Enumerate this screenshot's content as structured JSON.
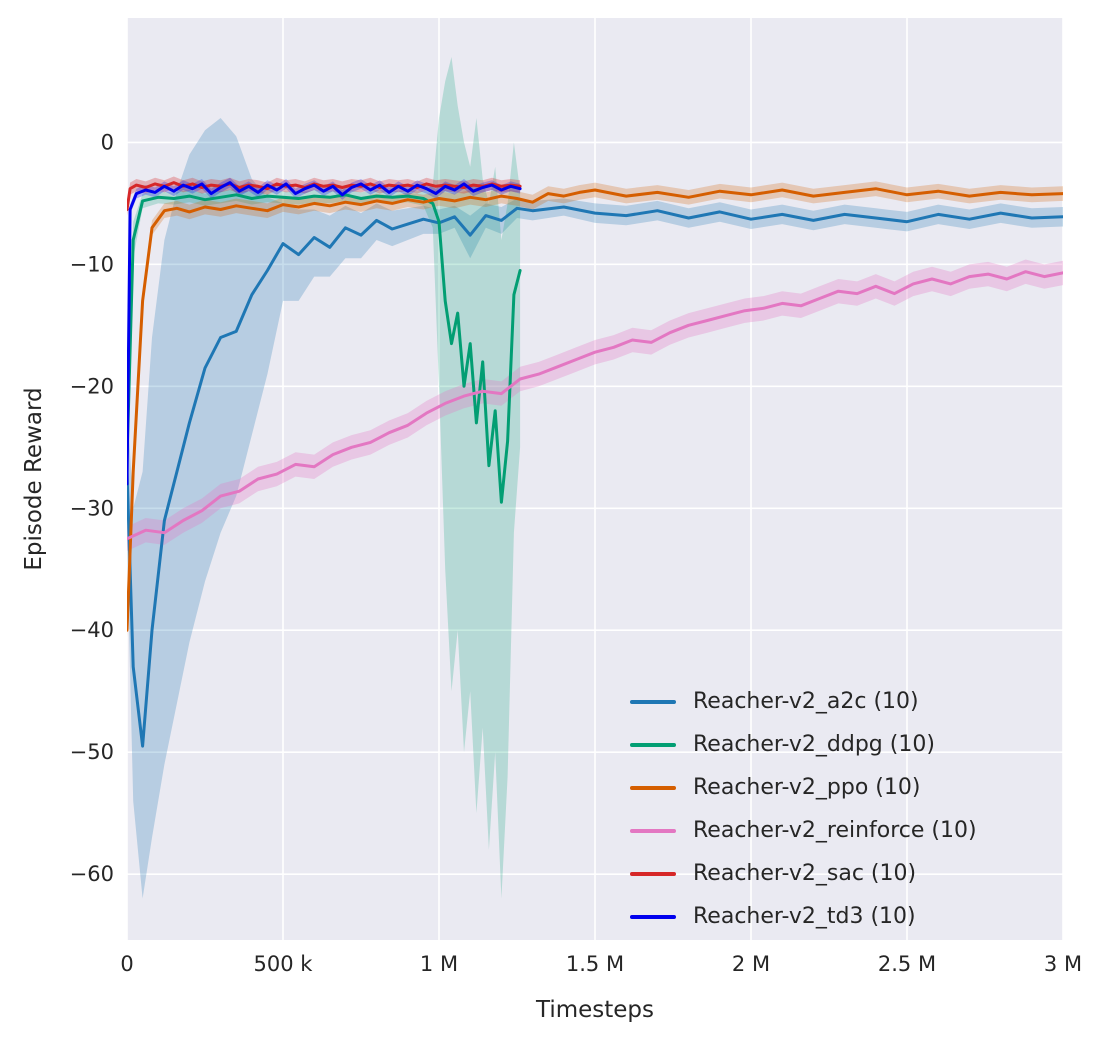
{
  "chart_data": {
    "type": "line",
    "title": "",
    "xlabel": "Timesteps",
    "ylabel": "Episode Reward",
    "x_unit": "millions of timesteps",
    "x_range": [
      0,
      3.0
    ],
    "y_range": [
      -65.4,
      10.2
    ],
    "grid": true,
    "legend_position": "lower right",
    "background": "#eaeaf2",
    "grid_color": "#ffffff",
    "text_color": "#262626",
    "xticks": [
      {
        "v": 0,
        "label": "0"
      },
      {
        "v": 0.5,
        "label": "500 k"
      },
      {
        "v": 1.0,
        "label": "1 M"
      },
      {
        "v": 1.5,
        "label": "1.5 M"
      },
      {
        "v": 2.0,
        "label": "2 M"
      },
      {
        "v": 2.5,
        "label": "2.5 M"
      },
      {
        "v": 3.0,
        "label": "3 M"
      }
    ],
    "yticks": [
      {
        "v": 0,
        "label": "0"
      },
      {
        "v": -10,
        "label": "−10"
      },
      {
        "v": -20,
        "label": "−20"
      },
      {
        "v": -30,
        "label": "−30"
      },
      {
        "v": -40,
        "label": "−40"
      },
      {
        "v": -50,
        "label": "−50"
      },
      {
        "v": -60,
        "label": "−60"
      }
    ],
    "series": [
      {
        "name": "a2c",
        "label": "Reacher-v2_a2c (10)",
        "color": "#1f77b4",
        "band_opacity": 0.25,
        "x": [
          0,
          0.02,
          0.05,
          0.08,
          0.12,
          0.16,
          0.2,
          0.25,
          0.3,
          0.35,
          0.4,
          0.45,
          0.5,
          0.55,
          0.6,
          0.65,
          0.7,
          0.75,
          0.8,
          0.85,
          0.9,
          0.95,
          1.0,
          1.05,
          1.1,
          1.15,
          1.2,
          1.25,
          1.3,
          1.4,
          1.5,
          1.6,
          1.7,
          1.8,
          1.9,
          2.0,
          2.1,
          2.2,
          2.3,
          2.4,
          2.5,
          2.6,
          2.7,
          2.8,
          2.9,
          3.0
        ],
        "y": [
          -27,
          -43,
          -49.5,
          -40,
          -31,
          -27,
          -23,
          -18.5,
          -16,
          -15.5,
          -12.5,
          -10.5,
          -8.3,
          -9.2,
          -7.8,
          -8.6,
          -7.0,
          -7.6,
          -6.4,
          -7.1,
          -6.7,
          -6.3,
          -6.6,
          -6.1,
          -7.6,
          -6.0,
          -6.4,
          -5.4,
          -5.6,
          -5.3,
          -5.8,
          -6.0,
          -5.6,
          -6.2,
          -5.7,
          -6.3,
          -5.9,
          -6.4,
          -5.9,
          -6.2,
          -6.5,
          -5.9,
          -6.3,
          -5.8,
          -6.2,
          -6.1
        ],
        "band": {
          "lo": [
            -33,
            -54,
            -62,
            -57,
            -51,
            -46,
            -41,
            -36,
            -32,
            -29,
            -24,
            -19,
            -13,
            -13,
            -11,
            -11,
            -9.5,
            -9.5,
            -8,
            -8.5,
            -8,
            -7.5,
            -7.5,
            -7,
            -9.5,
            -7,
            -7.5,
            -6.2,
            -6.4,
            -6,
            -6.6,
            -6.8,
            -6.4,
            -7,
            -6.5,
            -7.1,
            -6.7,
            -7.2,
            -6.7,
            -7,
            -7.3,
            -6.7,
            -7.1,
            -6.6,
            -7,
            -6.9
          ],
          "hi": [
            -21,
            -30,
            -27,
            -16,
            -8,
            -4,
            -1,
            1,
            2,
            0.5,
            -3,
            -4.5,
            -5,
            -5.5,
            -5.5,
            -6,
            -5.2,
            -5.8,
            -5,
            -5.6,
            -5.4,
            -5.2,
            -5.5,
            -5.2,
            -6,
            -5,
            -5.3,
            -4.6,
            -4.8,
            -4.6,
            -5,
            -5.2,
            -4.8,
            -5.4,
            -4.9,
            -5.5,
            -5.1,
            -5.6,
            -5.1,
            -5.4,
            -5.7,
            -5.1,
            -5.5,
            -5,
            -5.4,
            -5.3
          ]
        }
      },
      {
        "name": "ddpg",
        "label": "Reacher-v2_ddpg (10)",
        "color": "#029e73",
        "band_opacity": 0.22,
        "x": [
          0,
          0.02,
          0.05,
          0.1,
          0.15,
          0.2,
          0.25,
          0.3,
          0.35,
          0.4,
          0.45,
          0.5,
          0.55,
          0.6,
          0.65,
          0.7,
          0.75,
          0.8,
          0.85,
          0.9,
          0.95,
          0.98,
          1.0,
          1.02,
          1.04,
          1.06,
          1.08,
          1.1,
          1.12,
          1.14,
          1.16,
          1.18,
          1.2,
          1.22,
          1.24,
          1.26
        ],
        "y": [
          -26,
          -8,
          -4.8,
          -4.5,
          -4.6,
          -4.4,
          -4.7,
          -4.5,
          -4.3,
          -4.6,
          -4.4,
          -4.5,
          -4.6,
          -4.4,
          -4.5,
          -4.3,
          -4.6,
          -4.4,
          -4.5,
          -4.4,
          -4.6,
          -5.0,
          -6.5,
          -13,
          -16.5,
          -14,
          -20,
          -16.5,
          -23,
          -18,
          -26.5,
          -22,
          -29.5,
          -24.5,
          -12.5,
          -10.5
        ],
        "band": {
          "lo": [
            -28,
            -9.5,
            -5.4,
            -5.0,
            -5.1,
            -4.9,
            -5.2,
            -5.0,
            -4.8,
            -5.1,
            -4.9,
            -5.0,
            -5.1,
            -4.9,
            -5.0,
            -4.8,
            -5.1,
            -4.9,
            -5.0,
            -4.9,
            -5.2,
            -7,
            -20,
            -35,
            -45,
            -40,
            -50,
            -45,
            -55,
            -48,
            -58,
            -50,
            -62,
            -52,
            -32,
            -25
          ],
          "hi": [
            -24,
            -6.5,
            -4.2,
            -4.0,
            -4.1,
            -3.9,
            -4.2,
            -4.0,
            -3.8,
            -4.1,
            -3.9,
            -4.0,
            -4.1,
            -3.9,
            -4.0,
            -3.8,
            -4.1,
            -3.9,
            -4.0,
            -3.9,
            -4.0,
            -3.5,
            2,
            5,
            7,
            3,
            0,
            -2,
            2,
            -3,
            -5,
            -2,
            -8,
            -5,
            0,
            -4
          ]
        }
      },
      {
        "name": "ppo",
        "label": "Reacher-v2_ppo (10)",
        "color": "#d55e00",
        "band_opacity": 0.25,
        "band_halfwidth": 0.6,
        "x": [
          0,
          0.02,
          0.05,
          0.08,
          0.12,
          0.16,
          0.2,
          0.25,
          0.3,
          0.35,
          0.4,
          0.45,
          0.5,
          0.55,
          0.6,
          0.65,
          0.7,
          0.75,
          0.8,
          0.85,
          0.9,
          0.95,
          1.0,
          1.05,
          1.1,
          1.15,
          1.2,
          1.25,
          1.3,
          1.35,
          1.4,
          1.45,
          1.5,
          1.6,
          1.7,
          1.8,
          1.9,
          2.0,
          2.1,
          2.2,
          2.3,
          2.4,
          2.5,
          2.6,
          2.7,
          2.8,
          2.9,
          3.0
        ],
        "y": [
          -40,
          -27,
          -13,
          -7.0,
          -5.6,
          -5.4,
          -5.7,
          -5.3,
          -5.5,
          -5.2,
          -5.4,
          -5.6,
          -5.1,
          -5.3,
          -5.0,
          -5.2,
          -4.9,
          -5.1,
          -4.8,
          -5.0,
          -4.7,
          -4.9,
          -4.6,
          -4.8,
          -4.5,
          -4.7,
          -4.4,
          -4.6,
          -4.9,
          -4.2,
          -4.4,
          -4.1,
          -3.9,
          -4.4,
          -4.1,
          -4.5,
          -4.0,
          -4.3,
          -3.9,
          -4.4,
          -4.1,
          -3.8,
          -4.3,
          -4.0,
          -4.4,
          -4.1,
          -4.3,
          -4.2
        ]
      },
      {
        "name": "reinforce",
        "label": "Reacher-v2_reinforce (10)",
        "color": "#e377c2",
        "band_opacity": 0.3,
        "band_halfwidth": 1.0,
        "x": [
          0,
          0.06,
          0.12,
          0.18,
          0.24,
          0.3,
          0.36,
          0.42,
          0.48,
          0.54,
          0.6,
          0.66,
          0.72,
          0.78,
          0.84,
          0.9,
          0.96,
          1.02,
          1.08,
          1.14,
          1.2,
          1.26,
          1.32,
          1.38,
          1.44,
          1.5,
          1.56,
          1.62,
          1.68,
          1.74,
          1.8,
          1.86,
          1.92,
          1.98,
          2.04,
          2.1,
          2.16,
          2.22,
          2.28,
          2.34,
          2.4,
          2.46,
          2.52,
          2.58,
          2.64,
          2.7,
          2.76,
          2.82,
          2.88,
          2.94,
          3.0
        ],
        "y": [
          -32.5,
          -31.8,
          -32.0,
          -31.0,
          -30.2,
          -29.0,
          -28.6,
          -27.6,
          -27.2,
          -26.4,
          -26.6,
          -25.6,
          -25.0,
          -24.6,
          -23.8,
          -23.2,
          -22.2,
          -21.4,
          -20.8,
          -20.4,
          -20.6,
          -19.4,
          -19.0,
          -18.4,
          -17.8,
          -17.2,
          -16.8,
          -16.2,
          -16.4,
          -15.6,
          -15.0,
          -14.6,
          -14.2,
          -13.8,
          -13.6,
          -13.2,
          -13.4,
          -12.8,
          -12.2,
          -12.4,
          -11.8,
          -12.4,
          -11.6,
          -11.2,
          -11.6,
          -11.0,
          -10.8,
          -11.2,
          -10.6,
          -11.0,
          -10.7
        ]
      },
      {
        "name": "sac",
        "label": "Reacher-v2_sac (10)",
        "color": "#d62728",
        "band_opacity": 0.3,
        "band_halfwidth": 0.5,
        "x": [
          0,
          0.01,
          0.03,
          0.06,
          0.09,
          0.12,
          0.15,
          0.18,
          0.21,
          0.24,
          0.27,
          0.3,
          0.33,
          0.36,
          0.39,
          0.42,
          0.45,
          0.48,
          0.51,
          0.54,
          0.57,
          0.6,
          0.63,
          0.66,
          0.69,
          0.72,
          0.75,
          0.78,
          0.81,
          0.84,
          0.87,
          0.9,
          0.93,
          0.96,
          0.99,
          1.02,
          1.05,
          1.08,
          1.11,
          1.14,
          1.17,
          1.2,
          1.23,
          1.26
        ],
        "y": [
          -5.5,
          -3.8,
          -3.5,
          -3.7,
          -3.4,
          -3.6,
          -3.3,
          -3.6,
          -3.4,
          -3.7,
          -3.5,
          -3.6,
          -3.4,
          -3.7,
          -3.5,
          -3.6,
          -3.8,
          -3.4,
          -3.6,
          -3.5,
          -3.7,
          -3.4,
          -3.6,
          -3.5,
          -3.7,
          -3.5,
          -3.6,
          -3.4,
          -3.7,
          -3.5,
          -3.6,
          -3.5,
          -3.7,
          -3.4,
          -3.6,
          -3.5,
          -3.6,
          -3.7,
          -3.5,
          -3.6,
          -3.4,
          -3.6,
          -3.5,
          -3.6
        ]
      },
      {
        "name": "td3",
        "label": "Reacher-v2_td3 (10)",
        "color": "#0000ee",
        "band_opacity": 0.25,
        "band_halfwidth": 0.4,
        "x": [
          0,
          0.01,
          0.03,
          0.06,
          0.09,
          0.12,
          0.15,
          0.18,
          0.21,
          0.24,
          0.27,
          0.3,
          0.33,
          0.36,
          0.39,
          0.42,
          0.45,
          0.48,
          0.51,
          0.54,
          0.57,
          0.6,
          0.63,
          0.66,
          0.69,
          0.72,
          0.75,
          0.78,
          0.81,
          0.84,
          0.87,
          0.9,
          0.93,
          0.96,
          0.99,
          1.02,
          1.05,
          1.08,
          1.11,
          1.14,
          1.17,
          1.2,
          1.23,
          1.26
        ],
        "y": [
          -28,
          -5.5,
          -4.2,
          -3.9,
          -4.1,
          -3.6,
          -4.0,
          -3.5,
          -3.8,
          -3.4,
          -4.2,
          -3.7,
          -3.3,
          -4.0,
          -3.6,
          -4.1,
          -3.5,
          -3.9,
          -3.4,
          -4.2,
          -3.8,
          -3.5,
          -4.0,
          -3.6,
          -4.3,
          -3.7,
          -3.4,
          -3.9,
          -3.5,
          -4.1,
          -3.6,
          -4.0,
          -3.5,
          -3.8,
          -4.2,
          -3.6,
          -3.9,
          -3.4,
          -4.0,
          -3.7,
          -3.5,
          -3.9,
          -3.6,
          -3.8
        ]
      }
    ]
  }
}
